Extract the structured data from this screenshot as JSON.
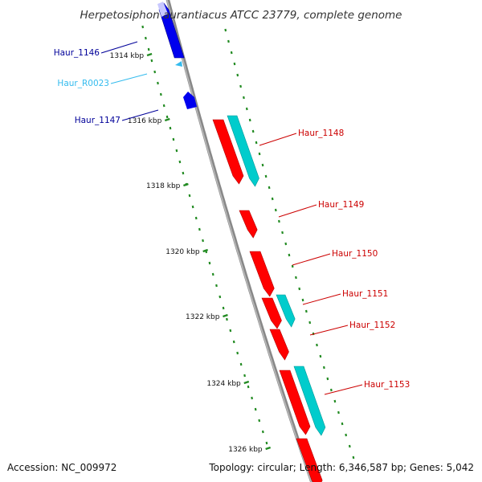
{
  "title": "Herpetosiphon aurantiacus ATCC 23779, complete genome",
  "footer": {
    "accession": "Accession: NC_009972",
    "summary": "Topology: circular; Length: 6,346,587 bp; Genes: 5,042"
  },
  "colors": {
    "forward_cds": "#ff0000",
    "forward_cds_dark": "#b30000",
    "reverse_cds": "#0000ee",
    "reverse_cds_light": "#c8c8ff",
    "rna": "#33bbee",
    "cds_overlay": "#00cccc",
    "cds_overlay_dark": "#009999",
    "backbone": "#888888",
    "tick": "#228b22",
    "label_dark_blue": "#000099",
    "label_cyan": "#33bbee",
    "label_red": "#cc0000"
  },
  "scale_labels": [
    "1314 kbp",
    "1316 kbp",
    "1318 kbp",
    "1320 kbp",
    "1322 kbp",
    "1324 kbp",
    "1326 kbp"
  ],
  "gene_labels": [
    {
      "name": "Haur_1146",
      "color": "label_dark_blue"
    },
    {
      "name": "Haur_R0023",
      "color": "label_cyan"
    },
    {
      "name": "Haur_1147",
      "color": "label_dark_blue"
    },
    {
      "name": "Haur_1148",
      "color": "label_red"
    },
    {
      "name": "Haur_1149",
      "color": "label_red"
    },
    {
      "name": "Haur_1150",
      "color": "label_red"
    },
    {
      "name": "Haur_1151",
      "color": "label_red"
    },
    {
      "name": "Haur_1152",
      "color": "label_red"
    },
    {
      "name": "Haur_1153",
      "color": "label_red"
    }
  ]
}
